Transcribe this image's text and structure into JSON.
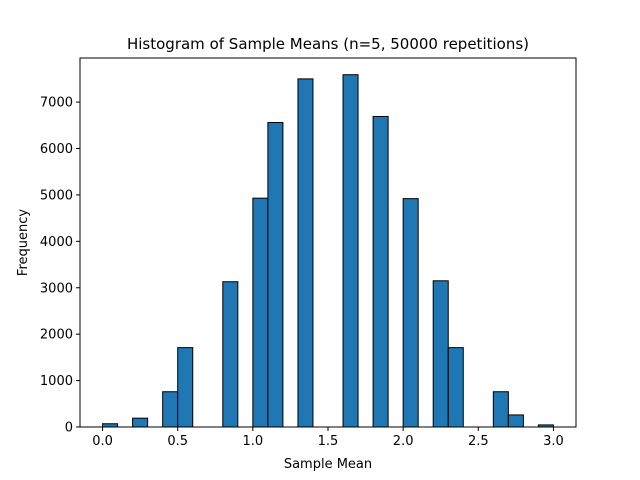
{
  "chart_data": {
    "type": "bar",
    "title": "Histogram of Sample Means (n=5, 50000 repetitions)",
    "xlabel": "Sample Mean",
    "ylabel": "Frequency",
    "xlim": [
      -0.15,
      3.15
    ],
    "ylim": [
      0,
      7950
    ],
    "xticks": [
      0.0,
      0.5,
      1.0,
      1.5,
      2.0,
      2.5,
      3.0
    ],
    "xtick_labels": [
      "0.0",
      "0.5",
      "1.0",
      "1.5",
      "2.0",
      "2.5",
      "3.0"
    ],
    "yticks": [
      0,
      1000,
      2000,
      3000,
      4000,
      5000,
      6000,
      7000
    ],
    "ytick_labels": [
      "0",
      "1000",
      "2000",
      "3000",
      "4000",
      "5000",
      "6000",
      "7000"
    ],
    "bin_width": 0.1,
    "bins": [
      {
        "start": 0.0,
        "value": 70
      },
      {
        "start": 0.2,
        "value": 190
      },
      {
        "start": 0.4,
        "value": 760
      },
      {
        "start": 0.5,
        "value": 1710
      },
      {
        "start": 0.8,
        "value": 3130
      },
      {
        "start": 1.0,
        "value": 4930
      },
      {
        "start": 1.1,
        "value": 6560
      },
      {
        "start": 1.3,
        "value": 7500
      },
      {
        "start": 1.6,
        "value": 7590
      },
      {
        "start": 1.8,
        "value": 6690
      },
      {
        "start": 2.0,
        "value": 4920
      },
      {
        "start": 2.2,
        "value": 3150
      },
      {
        "start": 2.3,
        "value": 1710
      },
      {
        "start": 2.6,
        "value": 760
      },
      {
        "start": 2.7,
        "value": 260
      },
      {
        "start": 2.9,
        "value": 45
      }
    ],
    "grid": false,
    "colors": {
      "bar_fill": "#1f77b4",
      "bar_edge": "#000000"
    }
  }
}
